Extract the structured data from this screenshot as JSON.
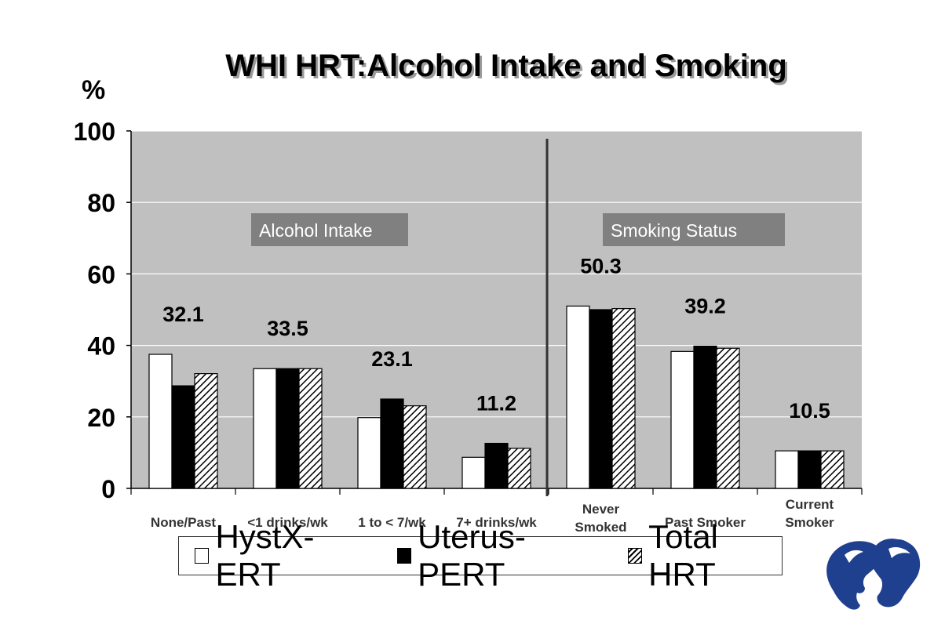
{
  "title": "WHI HRT:Alcohol Intake and Smoking",
  "y_unit": "%",
  "legend": [
    {
      "label": "HystX-ERT",
      "pattern": "white"
    },
    {
      "label": "Uterus-PERT",
      "pattern": "black"
    },
    {
      "label": "Total HRT",
      "pattern": "hatch"
    }
  ],
  "chart_data": {
    "type": "bar",
    "ylabel": "%",
    "ylim": [
      0,
      100
    ],
    "yticks": [
      0,
      20,
      40,
      60,
      80,
      100
    ],
    "grid": true,
    "background": "#c0c0c0",
    "categories": [
      "None/Past",
      "<1 drinks/wk",
      "1 to < 7/wk",
      "7+ drinks/wk",
      "Never Smoked",
      "Past Smoker",
      "Current Smoker"
    ],
    "series": [
      {
        "name": "HystX-ERT",
        "values": [
          37.5,
          33.5,
          19.8,
          8.7,
          51.0,
          38.3,
          10.5
        ],
        "color": "#ffffff"
      },
      {
        "name": "Uterus-PERT",
        "values": [
          28.7,
          33.5,
          25.0,
          12.6,
          50.0,
          39.8,
          10.5
        ],
        "color": "#000000"
      },
      {
        "name": "Total HRT",
        "values": [
          32.1,
          33.5,
          23.1,
          11.2,
          50.3,
          39.2,
          10.5
        ],
        "color": "hatch"
      }
    ],
    "data_labels": [
      "32.1",
      "33.5",
      "23.1",
      "11.2",
      "50.3",
      "39.2",
      "10.5"
    ],
    "groups": [
      {
        "label": "Alcohol Intake",
        "categories": [
          0,
          1,
          2,
          3
        ]
      },
      {
        "label": "Smoking Status",
        "categories": [
          4,
          5,
          6
        ]
      }
    ],
    "legend_position": "bottom"
  }
}
